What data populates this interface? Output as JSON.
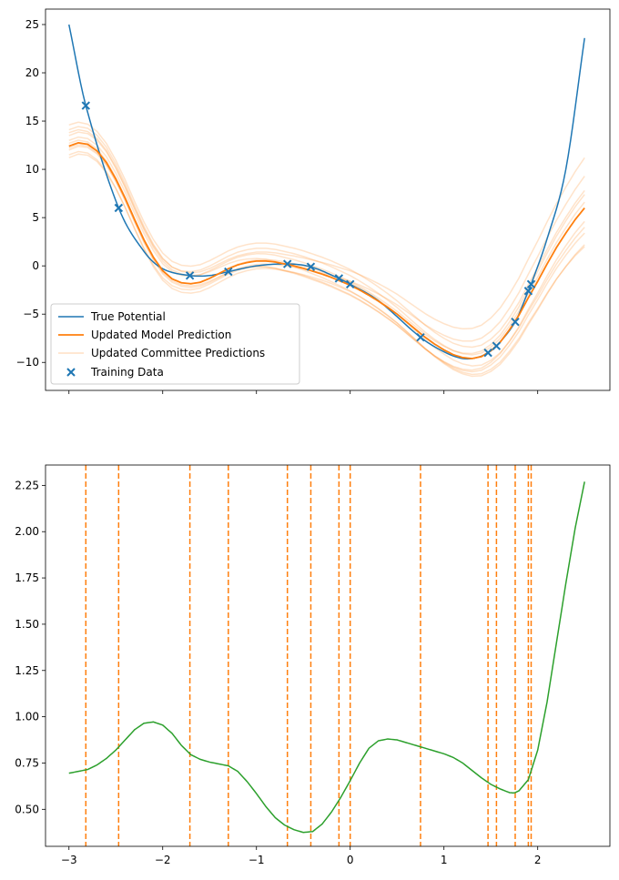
{
  "chart_data": [
    {
      "type": "line",
      "title": "",
      "xlabel": "",
      "ylabel": "",
      "xlim": [
        -3.25,
        2.77
      ],
      "ylim": [
        -12.9,
        26.6
      ],
      "grid": false,
      "legend_location": "lower-left",
      "x_ticks": [
        -3,
        -2,
        -1,
        0,
        1,
        2
      ],
      "x_tick_labels_visible": false,
      "y_ticks": [
        -10,
        -5,
        0,
        5,
        10,
        15,
        20,
        25
      ],
      "y_tick_labels": [
        "−10",
        "−5",
        "0",
        "5",
        "10",
        "15",
        "20",
        "25"
      ],
      "colors": {
        "true_potential": "#1f77b4",
        "model": "#ff7f0e",
        "committee": "#ff7f0e",
        "training": "#1f77b4"
      },
      "legend": {
        "true_potential": "True Potential",
        "model": "Updated Model Prediction",
        "committee": "Updated Committee Predictions",
        "training": "Training Data"
      },
      "training_x": [
        -2.82,
        -2.47,
        -1.71,
        -1.3,
        -0.67,
        -0.42,
        -0.12,
        0.0,
        0.75,
        1.47,
        1.56,
        1.76,
        1.9,
        1.93
      ],
      "model_points": [
        [
          -3.0,
          12.4
        ],
        [
          -2.9,
          12.75
        ],
        [
          -2.8,
          12.6
        ],
        [
          -2.7,
          11.9
        ],
        [
          -2.6,
          10.7
        ],
        [
          -2.5,
          9.0
        ],
        [
          -2.4,
          7.0
        ],
        [
          -2.3,
          4.8
        ],
        [
          -2.2,
          2.7
        ],
        [
          -2.1,
          0.9
        ],
        [
          -2.0,
          -0.5
        ],
        [
          -1.9,
          -1.35
        ],
        [
          -1.8,
          -1.75
        ],
        [
          -1.7,
          -1.85
        ],
        [
          -1.6,
          -1.7
        ],
        [
          -1.5,
          -1.3
        ],
        [
          -1.4,
          -0.8
        ],
        [
          -1.3,
          -0.3
        ],
        [
          -1.2,
          0.1
        ],
        [
          -1.1,
          0.35
        ],
        [
          -1.0,
          0.5
        ],
        [
          -0.9,
          0.5
        ],
        [
          -0.8,
          0.4
        ],
        [
          -0.7,
          0.2
        ],
        [
          -0.6,
          0.0
        ],
        [
          -0.5,
          -0.25
        ],
        [
          -0.4,
          -0.55
        ],
        [
          -0.3,
          -0.85
        ],
        [
          -0.2,
          -1.2
        ],
        [
          -0.1,
          -1.6
        ],
        [
          0.0,
          -2.0
        ],
        [
          0.1,
          -2.5
        ],
        [
          0.2,
          -3.05
        ],
        [
          0.3,
          -3.65
        ],
        [
          0.4,
          -4.3
        ],
        [
          0.5,
          -5.0
        ],
        [
          0.6,
          -5.8
        ],
        [
          0.7,
          -6.6
        ],
        [
          0.8,
          -7.4
        ],
        [
          0.9,
          -8.1
        ],
        [
          1.0,
          -8.7
        ],
        [
          1.1,
          -9.2
        ],
        [
          1.2,
          -9.5
        ],
        [
          1.3,
          -9.6
        ],
        [
          1.4,
          -9.4
        ],
        [
          1.5,
          -8.8
        ],
        [
          1.6,
          -7.9
        ],
        [
          1.7,
          -6.6
        ],
        [
          1.8,
          -5.1
        ],
        [
          1.9,
          -3.3
        ],
        [
          2.0,
          -1.6
        ],
        [
          2.1,
          0.2
        ],
        [
          2.2,
          1.9
        ],
        [
          2.3,
          3.4
        ],
        [
          2.4,
          4.8
        ],
        [
          2.5,
          6.0
        ]
      ],
      "committee_deviation_endpoints": [
        {
          "left": 0.6,
          "right": 1.4
        },
        {
          "left": -0.4,
          "right": -2.6
        },
        {
          "left": 1.7,
          "right": 5.2
        },
        {
          "left": -0.9,
          "right": -3.8
        },
        {
          "left": 2.2,
          "right": 1.8
        },
        {
          "left": -1.2,
          "right": -1.4
        },
        {
          "left": 1.1,
          "right": -4.0
        },
        {
          "left": -0.2,
          "right": 3.3
        },
        {
          "left": 0.3,
          "right": -2.0
        },
        {
          "left": 1.4,
          "right": 0.6
        }
      ]
    },
    {
      "type": "line",
      "title": "",
      "xlabel": "",
      "ylabel": "",
      "xlim": [
        -3.25,
        2.77
      ],
      "ylim": [
        0.3,
        2.36
      ],
      "grid": false,
      "x_ticks": [
        -3,
        -2,
        -1,
        0,
        1,
        2
      ],
      "x_tick_labels": [
        "−3",
        "−2",
        "−1",
        "0",
        "1",
        "2"
      ],
      "y_ticks": [
        0.5,
        0.75,
        1.0,
        1.25,
        1.5,
        1.75,
        2.0,
        2.25
      ],
      "y_tick_labels": [
        "0.50",
        "0.75",
        "1.00",
        "1.25",
        "1.50",
        "1.75",
        "2.00",
        "2.25"
      ],
      "colors": {
        "uncertainty": "#2ca02c",
        "training_lines": "#ff7f0e"
      },
      "training_x": [
        -2.82,
        -2.47,
        -1.71,
        -1.3,
        -0.67,
        -0.42,
        -0.12,
        0.0,
        0.75,
        1.47,
        1.56,
        1.76,
        1.9,
        1.93
      ],
      "uncertainty_points": [
        [
          -3.0,
          0.695
        ],
        [
          -2.9,
          0.705
        ],
        [
          -2.8,
          0.715
        ],
        [
          -2.7,
          0.74
        ],
        [
          -2.6,
          0.775
        ],
        [
          -2.5,
          0.82
        ],
        [
          -2.4,
          0.875
        ],
        [
          -2.3,
          0.93
        ],
        [
          -2.2,
          0.965
        ],
        [
          -2.1,
          0.972
        ],
        [
          -2.0,
          0.955
        ],
        [
          -1.9,
          0.91
        ],
        [
          -1.8,
          0.845
        ],
        [
          -1.7,
          0.795
        ],
        [
          -1.6,
          0.77
        ],
        [
          -1.5,
          0.755
        ],
        [
          -1.4,
          0.745
        ],
        [
          -1.3,
          0.735
        ],
        [
          -1.2,
          0.705
        ],
        [
          -1.1,
          0.65
        ],
        [
          -1.0,
          0.585
        ],
        [
          -0.9,
          0.515
        ],
        [
          -0.8,
          0.455
        ],
        [
          -0.7,
          0.415
        ],
        [
          -0.6,
          0.39
        ],
        [
          -0.5,
          0.375
        ],
        [
          -0.4,
          0.38
        ],
        [
          -0.3,
          0.42
        ],
        [
          -0.2,
          0.485
        ],
        [
          -0.1,
          0.565
        ],
        [
          0.0,
          0.655
        ],
        [
          0.1,
          0.75
        ],
        [
          0.2,
          0.83
        ],
        [
          0.3,
          0.87
        ],
        [
          0.4,
          0.88
        ],
        [
          0.5,
          0.875
        ],
        [
          0.6,
          0.86
        ],
        [
          0.7,
          0.845
        ],
        [
          0.8,
          0.83
        ],
        [
          0.9,
          0.815
        ],
        [
          1.0,
          0.8
        ],
        [
          1.1,
          0.78
        ],
        [
          1.2,
          0.75
        ],
        [
          1.3,
          0.71
        ],
        [
          1.4,
          0.67
        ],
        [
          1.5,
          0.635
        ],
        [
          1.6,
          0.61
        ],
        [
          1.7,
          0.59
        ],
        [
          1.75,
          0.588
        ],
        [
          1.8,
          0.6
        ],
        [
          1.9,
          0.66
        ],
        [
          2.0,
          0.82
        ],
        [
          2.1,
          1.08
        ],
        [
          2.2,
          1.4
        ],
        [
          2.3,
          1.72
        ],
        [
          2.4,
          2.02
        ],
        [
          2.5,
          2.27
        ]
      ]
    }
  ]
}
